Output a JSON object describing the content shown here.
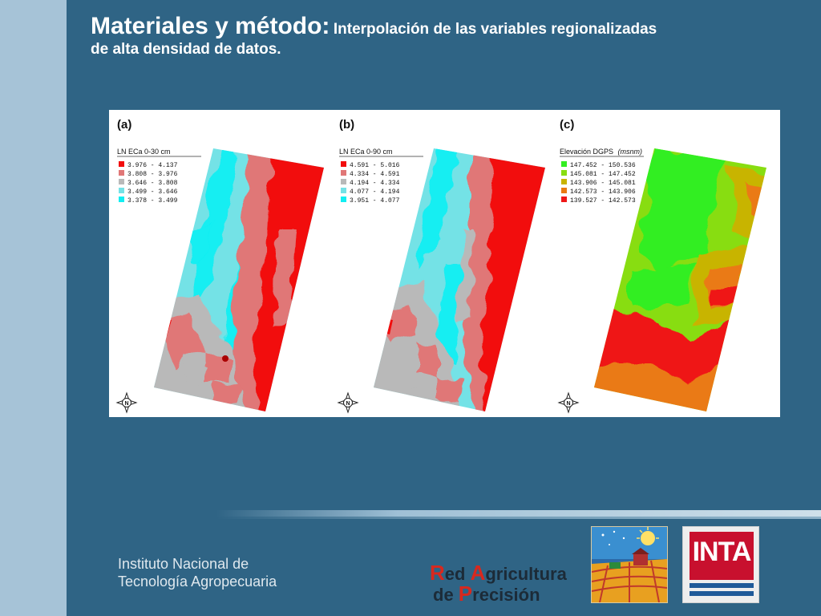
{
  "slide": {
    "title_main": "Materiales y método:",
    "title_sub": "Interpolación de las variables regionalizadas",
    "title_line2": "de alta densidad de datos."
  },
  "panels": [
    {
      "label": "(a)",
      "legend_title": "LN ECa 0-30 cm",
      "legend": [
        {
          "range": "3.976 - 4.137",
          "color": "#f20d0d"
        },
        {
          "range": "3.808 - 3.976",
          "color": "#e07777"
        },
        {
          "range": "3.646 - 3.808",
          "color": "#b9b9b9"
        },
        {
          "range": "3.499 - 3.646",
          "color": "#74e2e6"
        },
        {
          "range": "3.378 - 3.499",
          "color": "#12eef2"
        }
      ]
    },
    {
      "label": "(b)",
      "legend_title": "LN ECa 0-90 cm",
      "legend": [
        {
          "range": "4.591 - 5.016",
          "color": "#f20d0d"
        },
        {
          "range": "4.334 - 4.591",
          "color": "#e07777"
        },
        {
          "range": "4.194 - 4.334",
          "color": "#b9b9b9"
        },
        {
          "range": "4.077 - 4.194",
          "color": "#74e2e6"
        },
        {
          "range": "3.951 - 4.077",
          "color": "#12eef2"
        }
      ]
    },
    {
      "label": "(c)",
      "legend_title": "Elevación DGPS",
      "legend_unit": "(msnm)",
      "legend": [
        {
          "range": "147.452 - 150.536",
          "color": "#33ee22"
        },
        {
          "range": "145.081 - 147.452",
          "color": "#88dd11"
        },
        {
          "range": "143.906 - 145.081",
          "color": "#c8b400"
        },
        {
          "range": "142.573 - 143.906",
          "color": "#ea7a12"
        },
        {
          "range": "139.527 - 142.573",
          "color": "#ef1818"
        }
      ]
    }
  ],
  "north_label": "N",
  "footer": {
    "institute_line1": "Instituto Nacional de",
    "institute_line2": "Tecnología Agropecuaria",
    "rap_line1_cap1": "R",
    "rap_line1_rest1": "ed ",
    "rap_line1_cap2": "A",
    "rap_line1_rest2": "gricultura",
    "rap_line2_pre": "de ",
    "rap_line2_cap": "P",
    "rap_line2_rest": "recisión",
    "inta_text": "INTA"
  }
}
